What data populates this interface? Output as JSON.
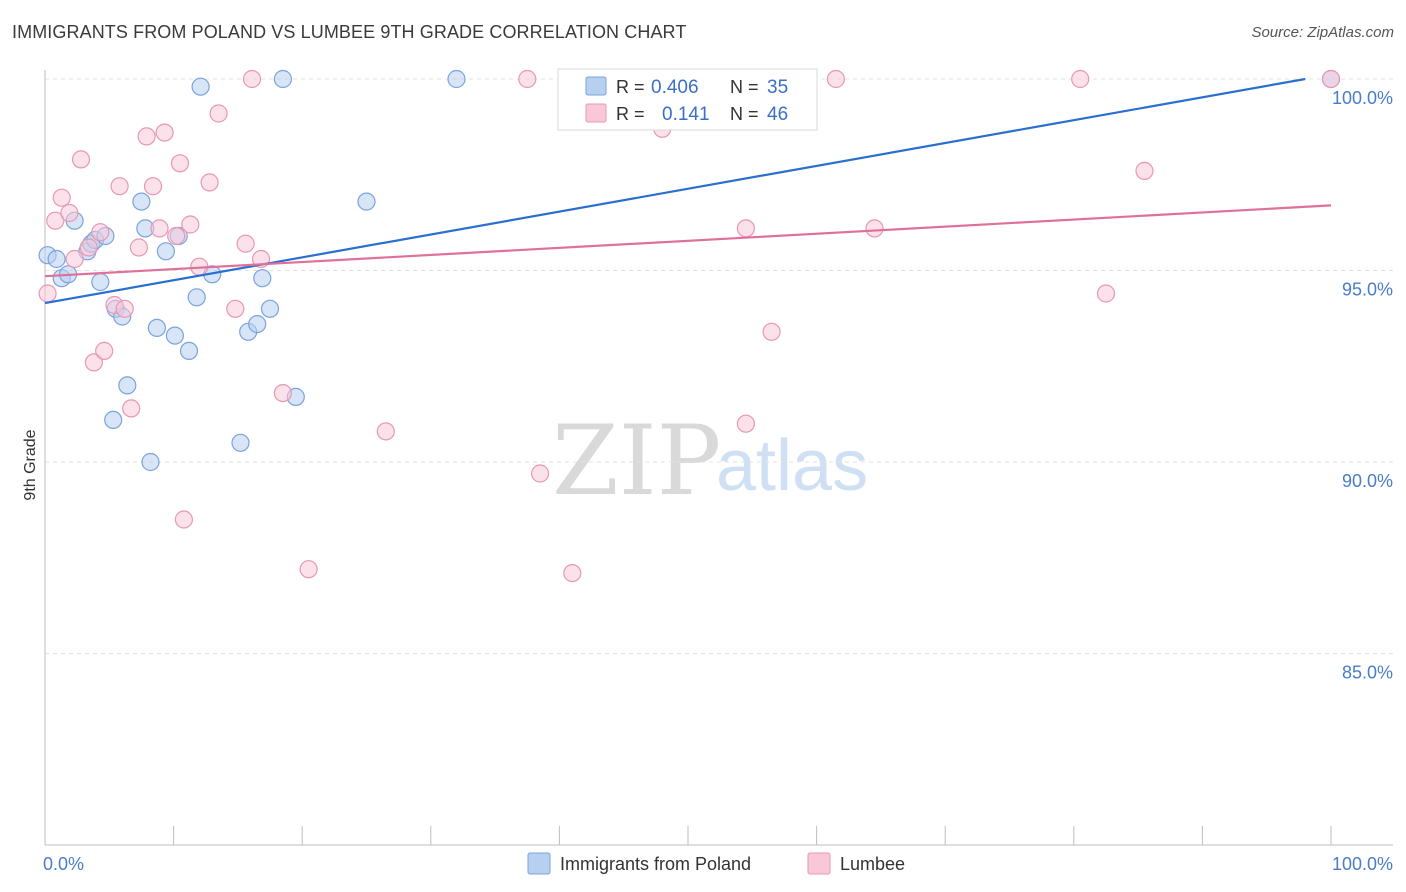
{
  "title": "IMMIGRANTS FROM POLAND VS LUMBEE 9TH GRADE CORRELATION CHART",
  "source": "Source: ZipAtlas.com",
  "watermark": {
    "zip": "ZIP",
    "atlas": "atlas"
  },
  "colors": {
    "blue_fill": "#b8d0f0",
    "blue_stroke": "#7aa3dd",
    "blue_line": "#2a6fd0",
    "pink_fill": "#f8c8d8",
    "pink_stroke": "#e897b3",
    "pink_line": "#e0709a",
    "accent_text": "#3a6fc7"
  },
  "legend": {
    "rows": [
      {
        "r_label": "R =",
        "r_value": "0.406",
        "n_label": "N =",
        "n_value": "35"
      },
      {
        "r_label": "R =",
        "r_value": "0.141",
        "n_label": "N =",
        "n_value": "46"
      }
    ]
  },
  "bottom_legend": [
    "Immigrants from Poland",
    "Lumbee"
  ],
  "chart_data": {
    "type": "scatter",
    "title": "IMMIGRANTS FROM POLAND VS LUMBEE 9TH GRADE CORRELATION CHART",
    "xlabel": "",
    "ylabel": "9th Grade",
    "xlim": [
      0,
      100
    ],
    "ylim": [
      80.5,
      100.7
    ],
    "x_tick_labels": [
      "0.0%",
      "100.0%"
    ],
    "y_ticks": [
      85,
      90,
      95,
      100
    ],
    "y_tick_labels": [
      "85.0%",
      "90.0%",
      "95.0%",
      "100.0%"
    ],
    "series": [
      {
        "name": "Immigrants from Poland",
        "r": 0.406,
        "n": 35,
        "trend": {
          "x": [
            0,
            98
          ],
          "y": [
            94.15,
            100.0
          ]
        },
        "points": [
          [
            0.2,
            95.4
          ],
          [
            0.9,
            95.3
          ],
          [
            1.3,
            94.8
          ],
          [
            1.8,
            94.9
          ],
          [
            2.3,
            96.3
          ],
          [
            3.3,
            95.5
          ],
          [
            3.6,
            95.7
          ],
          [
            3.9,
            95.8
          ],
          [
            4.3,
            94.7
          ],
          [
            4.7,
            95.9
          ],
          [
            5.5,
            94.0
          ],
          [
            6.0,
            93.8
          ],
          [
            5.3,
            91.1
          ],
          [
            6.4,
            92.0
          ],
          [
            7.5,
            96.8
          ],
          [
            7.8,
            96.1
          ],
          [
            8.2,
            90.0
          ],
          [
            8.7,
            93.5
          ],
          [
            9.4,
            95.5
          ],
          [
            10.1,
            93.3
          ],
          [
            10.4,
            95.9
          ],
          [
            11.2,
            92.9
          ],
          [
            11.8,
            94.3
          ],
          [
            12.1,
            99.8
          ],
          [
            13.0,
            94.9
          ],
          [
            15.2,
            90.5
          ],
          [
            15.8,
            93.4
          ],
          [
            16.5,
            93.6
          ],
          [
            16.9,
            94.8
          ],
          [
            17.5,
            94.0
          ],
          [
            18.5,
            100.0
          ],
          [
            19.5,
            91.7
          ],
          [
            25.0,
            96.8
          ],
          [
            32.0,
            100.0
          ],
          [
            100.0,
            100.0
          ]
        ]
      },
      {
        "name": "Lumbee",
        "r": 0.141,
        "n": 46,
        "trend": {
          "x": [
            0,
            100
          ],
          "y": [
            94.85,
            96.7
          ]
        },
        "points": [
          [
            0.2,
            94.4
          ],
          [
            0.8,
            96.3
          ],
          [
            1.3,
            96.9
          ],
          [
            1.9,
            96.5
          ],
          [
            2.3,
            95.3
          ],
          [
            2.8,
            97.9
          ],
          [
            3.4,
            95.6
          ],
          [
            3.8,
            92.6
          ],
          [
            4.3,
            96.0
          ],
          [
            4.6,
            92.9
          ],
          [
            5.4,
            94.1
          ],
          [
            5.8,
            97.2
          ],
          [
            6.2,
            94.0
          ],
          [
            6.7,
            91.4
          ],
          [
            7.3,
            95.6
          ],
          [
            7.9,
            98.5
          ],
          [
            8.4,
            97.2
          ],
          [
            8.9,
            96.1
          ],
          [
            9.3,
            98.6
          ],
          [
            10.2,
            95.9
          ],
          [
            10.5,
            97.8
          ],
          [
            10.8,
            88.5
          ],
          [
            11.3,
            96.2
          ],
          [
            12.0,
            95.1
          ],
          [
            12.8,
            97.3
          ],
          [
            13.5,
            99.1
          ],
          [
            14.8,
            94.0
          ],
          [
            15.6,
            95.7
          ],
          [
            16.1,
            100.0
          ],
          [
            16.8,
            95.3
          ],
          [
            18.5,
            91.8
          ],
          [
            20.5,
            87.2
          ],
          [
            26.5,
            90.8
          ],
          [
            37.5,
            100.0
          ],
          [
            38.5,
            89.7
          ],
          [
            41.0,
            87.1
          ],
          [
            48.0,
            98.7
          ],
          [
            54.5,
            96.1
          ],
          [
            54.5,
            91.0
          ],
          [
            56.5,
            93.4
          ],
          [
            61.5,
            100.0
          ],
          [
            64.5,
            96.1
          ],
          [
            80.5,
            100.0
          ],
          [
            82.5,
            94.4
          ],
          [
            85.5,
            97.6
          ],
          [
            100.0,
            100.0
          ]
        ]
      }
    ]
  }
}
